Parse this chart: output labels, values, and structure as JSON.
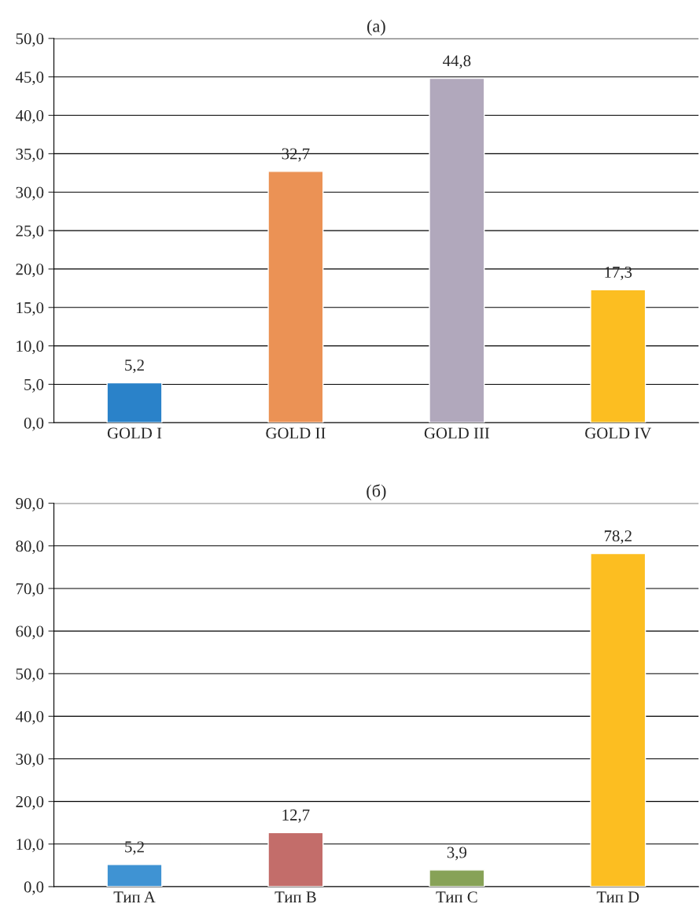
{
  "chart_data": [
    {
      "type": "bar",
      "title": "(а)",
      "categories": [
        "GOLD I",
        "GOLD II",
        "GOLD III",
        "GOLD IV"
      ],
      "values": [
        5.2,
        32.7,
        44.8,
        17.3
      ],
      "colors": [
        "#2a82c9",
        "#eb9255",
        "#b1a8bc",
        "#fcbe21"
      ],
      "value_labels": [
        "5,2",
        "32,7",
        "44,8",
        "17,3"
      ],
      "ylim": [
        0,
        50
      ],
      "yticks": [
        {
          "value": 0,
          "label": "0,0"
        },
        {
          "value": 5,
          "label": "5,0"
        },
        {
          "value": 10,
          "label": "10,0"
        },
        {
          "value": 15,
          "label": "15,0"
        },
        {
          "value": 20,
          "label": "20,0"
        },
        {
          "value": 25,
          "label": "25,0"
        },
        {
          "value": 30,
          "label": "30,0"
        },
        {
          "value": 35,
          "label": "35,0"
        },
        {
          "value": 40,
          "label": "40,0"
        },
        {
          "value": 45,
          "label": "45,0"
        },
        {
          "value": 50,
          "label": "50,0"
        }
      ],
      "grid": "y"
    },
    {
      "type": "bar",
      "title": "(б)",
      "categories": [
        "Тип A",
        "Тип B",
        "Тип C",
        "Тип D"
      ],
      "values": [
        5.2,
        12.7,
        3.9,
        78.2
      ],
      "colors": [
        "#3f93d3",
        "#c36d6a",
        "#87a257",
        "#fcbe21"
      ],
      "value_labels": [
        "5,2",
        "12,7",
        "3,9",
        "78,2"
      ],
      "ylim": [
        0,
        90
      ],
      "yticks": [
        {
          "value": 0,
          "label": "0,0"
        },
        {
          "value": 10,
          "label": "10,0"
        },
        {
          "value": 20,
          "label": "20,0"
        },
        {
          "value": 30,
          "label": "30,0"
        },
        {
          "value": 40,
          "label": "40,0"
        },
        {
          "value": 50,
          "label": "50,0"
        },
        {
          "value": 60,
          "label": "60,0"
        },
        {
          "value": 70,
          "label": "70,0"
        },
        {
          "value": 80,
          "label": "80,0"
        },
        {
          "value": 90,
          "label": "90,0"
        }
      ],
      "grid": "y"
    }
  ]
}
